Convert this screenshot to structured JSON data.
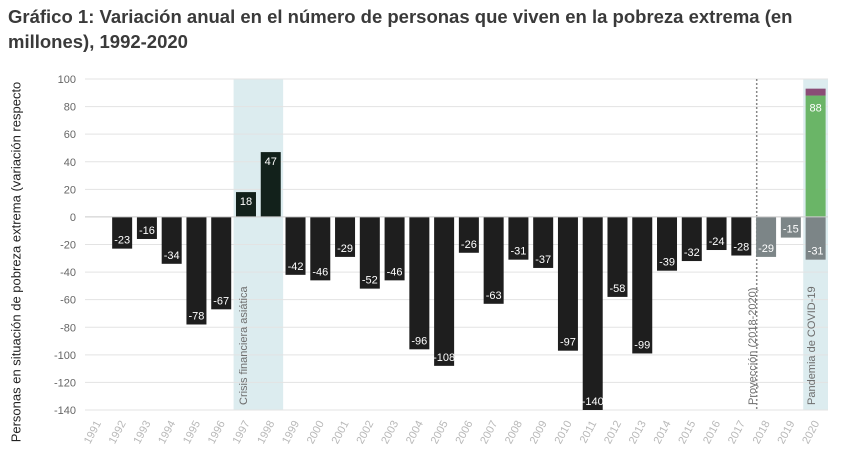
{
  "title": "Gráfico 1: Variación anual en el número de personas que viven en la pobreza extrema (en millones), 1992-2020",
  "chart_data": {
    "type": "bar",
    "title": "Gráfico 1: Variación anual en el número de personas que viven en la pobreza extrema (en millones), 1992-2020",
    "ylabel": "Personas en situación de pobreza extrema (variación respecto",
    "xlabel": "",
    "ylim": [
      -140,
      100
    ],
    "yticks": [
      100,
      80,
      60,
      40,
      20,
      0,
      -20,
      -40,
      -60,
      -80,
      -100,
      -120,
      -140
    ],
    "grid": true,
    "categories": [
      "1991",
      "1992",
      "1993",
      "1994",
      "1995",
      "1996",
      "1997",
      "1998",
      "1999",
      "2000",
      "2001",
      "2002",
      "2003",
      "2004",
      "2005",
      "2006",
      "2007",
      "2008",
      "2009",
      "2010",
      "2011",
      "2012",
      "2013",
      "2014",
      "2015",
      "2016",
      "2017",
      "2018",
      "2019",
      "2020"
    ],
    "series": [
      {
        "values": [
          null,
          -23,
          -16,
          -34,
          -78,
          -67,
          18,
          47,
          -42,
          -46,
          -29,
          -52,
          -46,
          -96,
          -108,
          -26,
          -63,
          -31,
          -37,
          -97,
          -140,
          -58,
          -99,
          -39,
          -32,
          -24,
          -28,
          -29,
          -15,
          -31
        ]
      }
    ],
    "data_labels": [
      "",
      "-23",
      "-16",
      "-34",
      "-78",
      "-67",
      "18",
      "47",
      "-42",
      "-46",
      "-29",
      "-52",
      "-46",
      "-96",
      "-108",
      "-26",
      "-63",
      "-31",
      "-37",
      "-97",
      "-140",
      "-58",
      "-99",
      "-39",
      "-32",
      "-24",
      "-28",
      "-29",
      "-15",
      "-31"
    ],
    "covid_stack_2020": [
      {
        "value": 88,
        "label": "88",
        "color": "#6ab567"
      },
      {
        "value": 5,
        "label": "",
        "color": "#8a4d76"
      }
    ],
    "annotations": [
      {
        "label": "Crisis financiera asiática",
        "years": [
          "1997",
          "1998"
        ]
      },
      {
        "label": "Proyección (2018-2020)",
        "divider_before": "2018"
      },
      {
        "label": "Pandemia de COVID-19",
        "years": [
          "2020"
        ]
      }
    ],
    "colors": {
      "historical": "#1e1e1e",
      "asian_crisis": "#12211b",
      "projection": "#7c8587",
      "covid_increase": "#6ab567",
      "covid_top": "#8a4d76",
      "highlight": "#dcecef"
    }
  }
}
